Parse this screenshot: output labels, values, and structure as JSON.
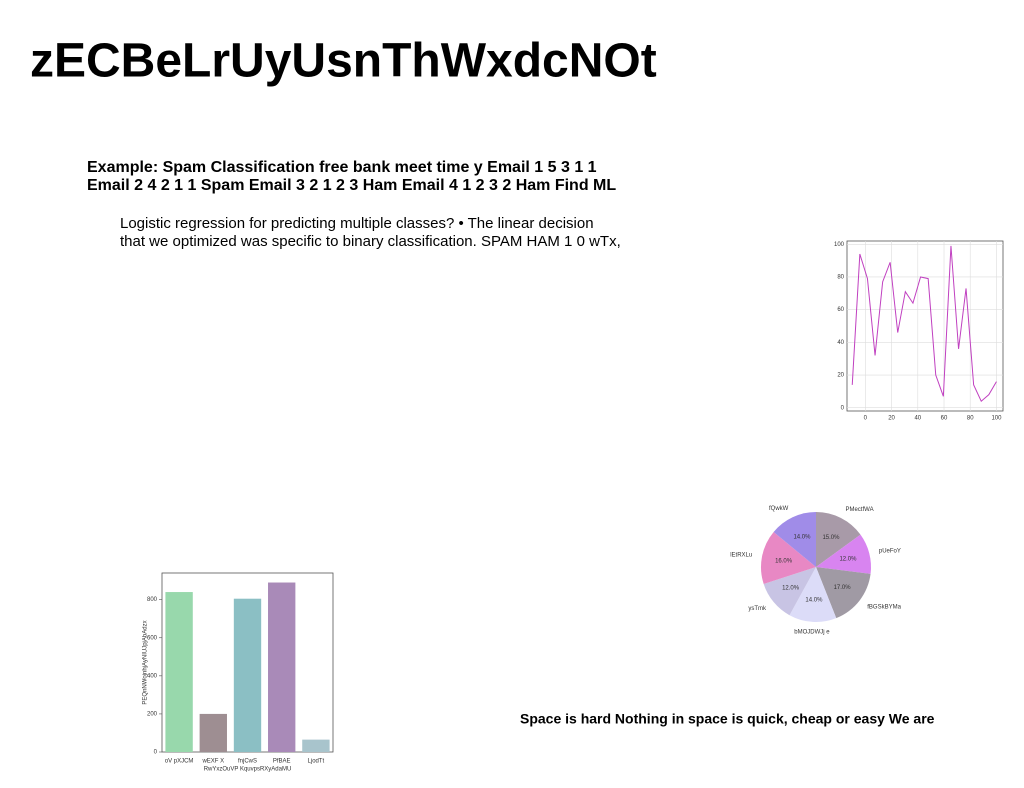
{
  "title": "zECBeLrUyUsnThWxdcNOt",
  "heading": [
    "Example: Spam Classification free bank meet time y Email 1 5 3 1 1",
    "Email 2 4 2 1 1 Spam Email 3 2 1 2 3 Ham Email 4 1 2 3 2 Ham Find ML"
  ],
  "paragraph": [
    "Logistic regression for predicting multiple classes? • The linear decision",
    "that we optimized was specific to binary classification. SPAM HAM 1 0 wTx,"
  ],
  "footer": "Space is hard Nothing in space is quick, cheap or easy We are",
  "chart_data": [
    {
      "type": "line",
      "color": "#c040c0",
      "x": [
        -10,
        -4.2,
        1.6,
        7.4,
        13.2,
        18.9,
        24.7,
        30.5,
        36.3,
        42.1,
        47.9,
        53.7,
        59.5,
        65.3,
        71.1,
        76.8,
        82.6,
        88.4,
        94.2,
        100
      ],
      "values": [
        14,
        94,
        79,
        32,
        77,
        89,
        46,
        71,
        64,
        80,
        79,
        20,
        7,
        99,
        36,
        73,
        14,
        4,
        8,
        16
      ],
      "xlim": [
        -14,
        105
      ],
      "ylim": [
        -2,
        102
      ],
      "xticks": [
        0,
        20,
        40,
        60,
        80,
        100
      ],
      "yticks": [
        0,
        20,
        40,
        60,
        80,
        100
      ],
      "grid": true
    },
    {
      "type": "bar",
      "categories": [
        "oV pXJCM",
        "wEXF X",
        "fnjCwS",
        "PfBAE",
        "LjodTt"
      ],
      "values": [
        840,
        200,
        805,
        890,
        65
      ],
      "colors": [
        "#98d8ac",
        "#9e8e92",
        "#8bbfc4",
        "#a98ab8",
        "#a8c4cc"
      ],
      "xlabel": "RwYxzOuVP KquvpsRXyAdaMU",
      "ylabel": "PEQnNWojnhjAyNIUJpjAbAdzx",
      "ylim": [
        0,
        940
      ],
      "yticks": [
        0,
        200,
        400,
        600,
        800
      ]
    },
    {
      "type": "pie",
      "categories": [
        "PMectfWA",
        "pUeFoY",
        "fBGSkBYMa",
        "bMOJDWJj e",
        "ysTmk",
        "lEtRXLu",
        "fQwkW"
      ],
      "values": [
        15,
        12,
        17,
        14,
        12,
        16,
        14
      ],
      "value_labels": [
        "15.0%",
        "12.0%",
        "17.0%",
        "14.0%",
        "12.0%",
        "16.0%",
        "14.0%"
      ],
      "colors": [
        "#a89aa8",
        "#d884f0",
        "#a09aa4",
        "#dcdcf8",
        "#c8c4e4",
        "#e888c4",
        "#a08ce8"
      ]
    }
  ]
}
